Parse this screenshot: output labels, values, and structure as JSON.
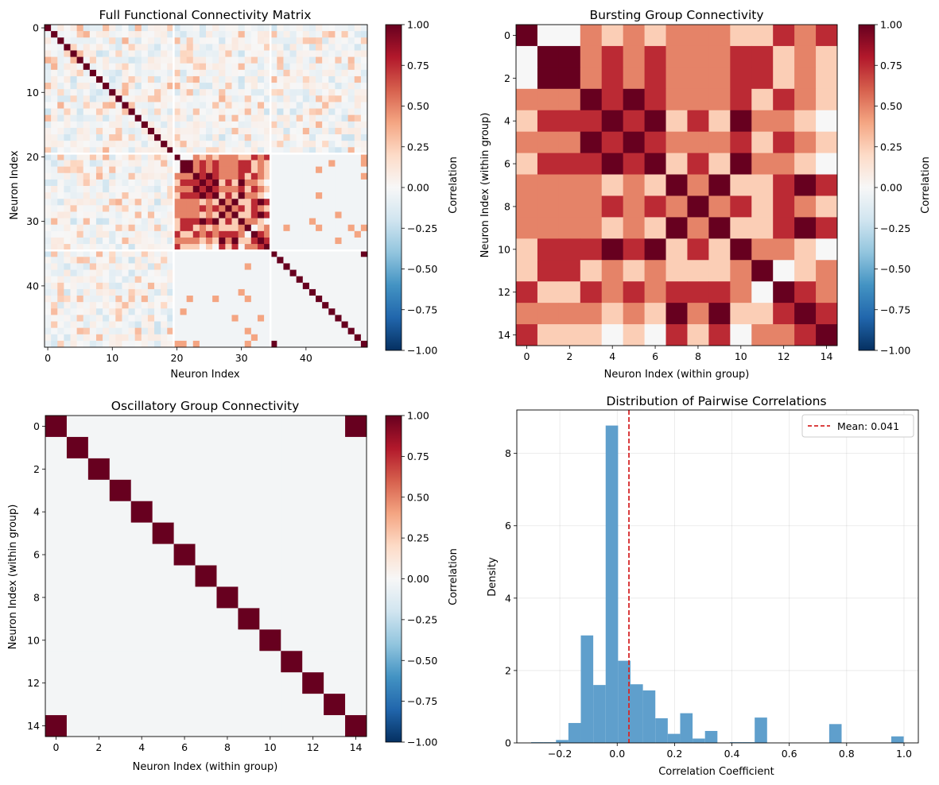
{
  "chart_data": [
    {
      "type": "heatmap",
      "title": "Full Functional Connectivity Matrix",
      "xlabel": "Neuron Index",
      "ylabel": "Neuron Index",
      "n": 50,
      "xticks": [
        0,
        10,
        20,
        30,
        40
      ],
      "yticks": [
        0,
        10,
        20,
        30,
        40
      ],
      "colorbar": {
        "label": "Correlation",
        "min": -1.0,
        "max": 1.0,
        "ticks": [
          "1.00",
          "0.75",
          "0.50",
          "0.25",
          "0.00",
          "−0.25",
          "−0.50",
          "−0.75",
          "−1.00"
        ]
      },
      "groups": {
        "random": [
          0,
          19
        ],
        "bursting": [
          20,
          34
        ],
        "oscillatory": [
          35,
          49
        ]
      },
      "separators_after": [
        19.5,
        34.5
      ]
    },
    {
      "type": "heatmap",
      "title": "Bursting Group Connectivity",
      "xlabel": "Neuron Index (within group)",
      "ylabel": "Neuron Index (within group)",
      "n": 15,
      "xticks": [
        0,
        2,
        4,
        6,
        8,
        10,
        12,
        14
      ],
      "yticks": [
        0,
        2,
        4,
        6,
        8,
        10,
        12,
        14
      ],
      "colorbar": {
        "label": "Correlation",
        "min": -1.0,
        "max": 1.0,
        "ticks": [
          "1.00",
          "0.75",
          "0.50",
          "0.25",
          "0.00",
          "−0.25",
          "−0.50",
          "−0.75",
          "−1.00"
        ]
      },
      "matrix": [
        [
          1.0,
          0.0,
          0.0,
          0.5,
          0.25,
          0.5,
          0.25,
          0.5,
          0.5,
          0.5,
          0.25,
          0.25,
          0.75,
          0.5,
          0.75
        ],
        [
          0.0,
          1.0,
          1.0,
          0.5,
          0.75,
          0.5,
          0.75,
          0.5,
          0.5,
          0.5,
          0.75,
          0.75,
          0.25,
          0.5,
          0.25
        ],
        [
          0.0,
          1.0,
          1.0,
          0.5,
          0.75,
          0.5,
          0.75,
          0.5,
          0.5,
          0.5,
          0.75,
          0.75,
          0.25,
          0.5,
          0.25
        ],
        [
          0.5,
          0.5,
          0.5,
          1.0,
          0.75,
          1.0,
          0.75,
          0.5,
          0.5,
          0.5,
          0.75,
          0.25,
          0.75,
          0.5,
          0.25
        ],
        [
          0.25,
          0.75,
          0.75,
          0.75,
          1.0,
          0.75,
          1.0,
          0.25,
          0.75,
          0.25,
          1.0,
          0.5,
          0.5,
          0.25,
          0.0
        ],
        [
          0.5,
          0.5,
          0.5,
          1.0,
          0.75,
          1.0,
          0.75,
          0.5,
          0.5,
          0.5,
          0.75,
          0.25,
          0.75,
          0.5,
          0.25
        ],
        [
          0.25,
          0.75,
          0.75,
          0.75,
          1.0,
          0.75,
          1.0,
          0.25,
          0.75,
          0.25,
          1.0,
          0.5,
          0.5,
          0.25,
          0.0
        ],
        [
          0.5,
          0.5,
          0.5,
          0.5,
          0.25,
          0.5,
          0.25,
          1.0,
          0.5,
          1.0,
          0.25,
          0.25,
          0.75,
          1.0,
          0.75
        ],
        [
          0.5,
          0.5,
          0.5,
          0.5,
          0.75,
          0.5,
          0.75,
          0.5,
          1.0,
          0.5,
          0.75,
          0.25,
          0.75,
          0.5,
          0.25
        ],
        [
          0.5,
          0.5,
          0.5,
          0.5,
          0.25,
          0.5,
          0.25,
          1.0,
          0.5,
          1.0,
          0.25,
          0.25,
          0.75,
          1.0,
          0.75
        ],
        [
          0.25,
          0.75,
          0.75,
          0.75,
          1.0,
          0.75,
          1.0,
          0.25,
          0.75,
          0.25,
          1.0,
          0.5,
          0.5,
          0.25,
          0.0
        ],
        [
          0.25,
          0.75,
          0.75,
          0.25,
          0.5,
          0.25,
          0.5,
          0.25,
          0.25,
          0.25,
          0.5,
          1.0,
          0.0,
          0.25,
          0.5
        ],
        [
          0.75,
          0.25,
          0.25,
          0.75,
          0.5,
          0.75,
          0.5,
          0.75,
          0.75,
          0.75,
          0.5,
          0.0,
          1.0,
          0.75,
          0.5
        ],
        [
          0.5,
          0.5,
          0.5,
          0.5,
          0.25,
          0.5,
          0.25,
          1.0,
          0.5,
          1.0,
          0.25,
          0.25,
          0.75,
          1.0,
          0.75
        ],
        [
          0.75,
          0.25,
          0.25,
          0.25,
          0.0,
          0.25,
          0.0,
          0.75,
          0.25,
          0.75,
          0.0,
          0.5,
          0.5,
          0.75,
          1.0
        ]
      ]
    },
    {
      "type": "heatmap",
      "title": "Oscillatory Group Connectivity",
      "xlabel": "Neuron Index (within group)",
      "ylabel": "Neuron Index (within group)",
      "n": 15,
      "xticks": [
        0,
        2,
        4,
        6,
        8,
        10,
        12,
        14
      ],
      "yticks": [
        0,
        2,
        4,
        6,
        8,
        10,
        12,
        14
      ],
      "colorbar": {
        "label": "Correlation",
        "min": -1.0,
        "max": 1.0,
        "ticks": [
          "1.00",
          "0.75",
          "0.50",
          "0.25",
          "0.00",
          "−0.25",
          "−0.50",
          "−0.75",
          "−1.00"
        ]
      },
      "off_diagonal_value": -0.02,
      "ones": [
        [
          0,
          14
        ],
        [
          14,
          0
        ]
      ]
    },
    {
      "type": "bar",
      "title": "Distribution of Pairwise Correlations",
      "xlabel": "Correlation Coefficient",
      "ylabel": "Density",
      "xlim": [
        -0.35,
        1.05
      ],
      "ylim": [
        0,
        9.2
      ],
      "xticks": [
        "−0.2",
        "0.0",
        "0.2",
        "0.4",
        "0.6",
        "0.8",
        "1.0"
      ],
      "xtick_values": [
        -0.2,
        0.0,
        0.2,
        0.4,
        0.6,
        0.8,
        1.0
      ],
      "yticks": [
        0,
        2,
        4,
        6,
        8
      ],
      "grid": true,
      "bin_start": -0.3,
      "bin_width": 0.0433,
      "values": [
        0.02,
        0.02,
        0.08,
        0.55,
        2.97,
        1.6,
        8.77,
        2.27,
        1.62,
        1.45,
        0.68,
        0.25,
        0.82,
        0.12,
        0.33,
        0.0,
        0.02,
        0.02,
        0.7,
        0.0,
        0.0,
        0.0,
        0.0,
        0.0,
        0.52,
        0.0,
        0.0,
        0.0,
        0.0,
        0.18
      ],
      "mean": 0.041,
      "legend": {
        "label": "Mean: 0.041",
        "placement": "top-right"
      },
      "colors": {
        "bar": "#5f9fcc",
        "mean_line": "#d62728"
      }
    }
  ]
}
